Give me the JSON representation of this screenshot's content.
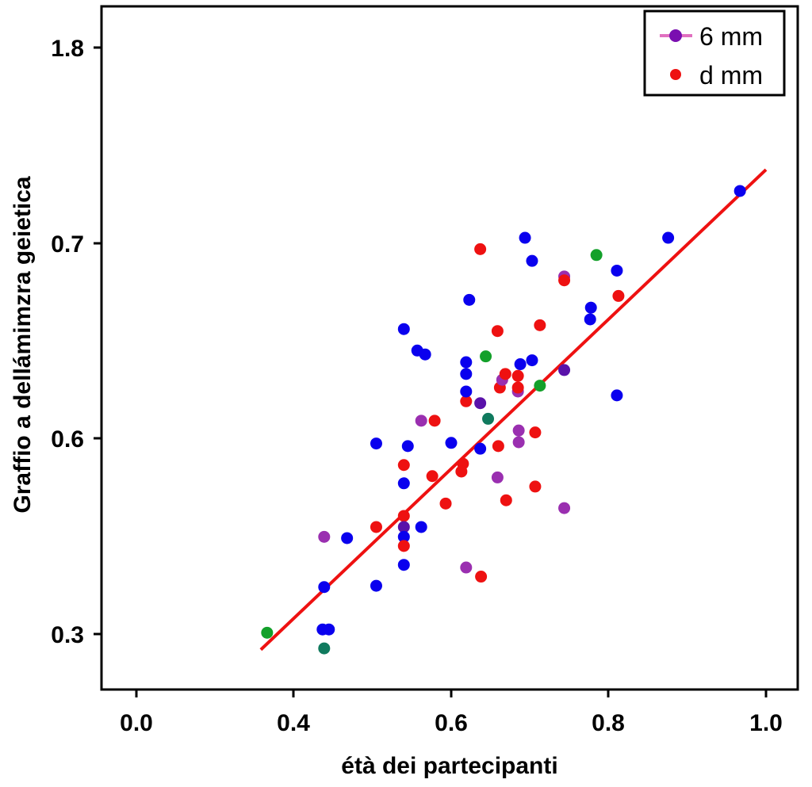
{
  "chart_data": {
    "type": "scatter",
    "title": "",
    "xlabel": "étà dei partecipanti",
    "ylabel": "Graffio a dellámimzra geietica",
    "x_ticks": [
      "0.0",
      "0.4",
      "0.6",
      "0.8",
      "1.0"
    ],
    "x_tick_values": [
      0.0,
      0.4,
      0.6,
      0.8,
      1.0
    ],
    "y_ticks": [
      "0.3",
      "0.6",
      "0.7",
      "1.8"
    ],
    "y_tick_values": [
      0.3,
      0.6,
      0.7,
      1.8
    ],
    "axis_scale_note": "tick labels are evenly spaced but unequal in value; scale is piecewise between ticks",
    "grid": false,
    "legend_position": "top-right",
    "legend": [
      {
        "label": "6 mm",
        "marker": "line-dot",
        "color": "#7a0fb0",
        "line_color": "#e070c0"
      },
      {
        "label": "d mm",
        "marker": "dot",
        "color": "#ee1111"
      }
    ],
    "colors": {
      "blue": "#0a00ee",
      "red": "#ee1111",
      "purple": "#9a2fb0",
      "violet": "#5a12aa",
      "green": "#13a02a",
      "teal": "#107a5e"
    },
    "points": [
      {
        "x": 0.333,
        "y": 0.302,
        "c": "green"
      },
      {
        "x": 0.439,
        "y": 0.278,
        "c": "teal"
      },
      {
        "x": 0.437,
        "y": 0.307,
        "c": "blue"
      },
      {
        "x": 0.445,
        "y": 0.307,
        "c": "blue"
      },
      {
        "x": 0.439,
        "y": 0.372,
        "c": "blue"
      },
      {
        "x": 0.439,
        "y": 0.449,
        "c": "purple"
      },
      {
        "x": 0.468,
        "y": 0.447,
        "c": "blue"
      },
      {
        "x": 0.505,
        "y": 0.592,
        "c": "blue"
      },
      {
        "x": 0.505,
        "y": 0.374,
        "c": "blue"
      },
      {
        "x": 0.505,
        "y": 0.464,
        "c": "red"
      },
      {
        "x": 0.54,
        "y": 0.559,
        "c": "red"
      },
      {
        "x": 0.54,
        "y": 0.531,
        "c": "blue"
      },
      {
        "x": 0.54,
        "y": 0.481,
        "c": "red"
      },
      {
        "x": 0.54,
        "y": 0.464,
        "c": "violet"
      },
      {
        "x": 0.54,
        "y": 0.449,
        "c": "blue"
      },
      {
        "x": 0.54,
        "y": 0.435,
        "c": "red"
      },
      {
        "x": 0.54,
        "y": 0.406,
        "c": "blue"
      },
      {
        "x": 0.562,
        "y": 0.464,
        "c": "blue"
      },
      {
        "x": 0.545,
        "y": 0.588,
        "c": "blue"
      },
      {
        "x": 0.576,
        "y": 0.542,
        "c": "red"
      },
      {
        "x": 0.593,
        "y": 0.5,
        "c": "red"
      },
      {
        "x": 0.6,
        "y": 0.593,
        "c": "blue"
      },
      {
        "x": 0.562,
        "y": 0.609,
        "c": "purple"
      },
      {
        "x": 0.579,
        "y": 0.609,
        "c": "red"
      },
      {
        "x": 0.54,
        "y": 0.656,
        "c": "blue"
      },
      {
        "x": 0.557,
        "y": 0.645,
        "c": "blue"
      },
      {
        "x": 0.567,
        "y": 0.643,
        "c": "blue"
      },
      {
        "x": 0.615,
        "y": 0.561,
        "c": "red"
      },
      {
        "x": 0.613,
        "y": 0.549,
        "c": "red"
      },
      {
        "x": 0.619,
        "y": 0.619,
        "c": "red"
      },
      {
        "x": 0.619,
        "y": 0.624,
        "c": "blue"
      },
      {
        "x": 0.619,
        "y": 0.633,
        "c": "blue"
      },
      {
        "x": 0.619,
        "y": 0.639,
        "c": "blue"
      },
      {
        "x": 0.623,
        "y": 0.671,
        "c": "blue"
      },
      {
        "x": 0.619,
        "y": 0.402,
        "c": "purple"
      },
      {
        "x": 0.638,
        "y": 0.388,
        "c": "red"
      },
      {
        "x": 0.637,
        "y": 0.697,
        "c": "red"
      },
      {
        "x": 0.637,
        "y": 0.618,
        "c": "violet"
      },
      {
        "x": 0.647,
        "y": 0.61,
        "c": "teal"
      },
      {
        "x": 0.644,
        "y": 0.642,
        "c": "green"
      },
      {
        "x": 0.637,
        "y": 0.584,
        "c": "blue"
      },
      {
        "x": 0.659,
        "y": 0.54,
        "c": "purple"
      },
      {
        "x": 0.66,
        "y": 0.588,
        "c": "red"
      },
      {
        "x": 0.67,
        "y": 0.505,
        "c": "red"
      },
      {
        "x": 0.659,
        "y": 0.655,
        "c": "red"
      },
      {
        "x": 0.662,
        "y": 0.626,
        "c": "red"
      },
      {
        "x": 0.665,
        "y": 0.63,
        "c": "purple"
      },
      {
        "x": 0.669,
        "y": 0.633,
        "c": "red"
      },
      {
        "x": 0.685,
        "y": 0.624,
        "c": "purple"
      },
      {
        "x": 0.685,
        "y": 0.626,
        "c": "red"
      },
      {
        "x": 0.685,
        "y": 0.632,
        "c": "red"
      },
      {
        "x": 0.686,
        "y": 0.604,
        "c": "purple"
      },
      {
        "x": 0.686,
        "y": 0.594,
        "c": "purple"
      },
      {
        "x": 0.688,
        "y": 0.638,
        "c": "blue"
      },
      {
        "x": 0.694,
        "y": 0.731,
        "c": "blue"
      },
      {
        "x": 0.703,
        "y": 0.691,
        "c": "blue"
      },
      {
        "x": 0.703,
        "y": 0.64,
        "c": "blue"
      },
      {
        "x": 0.713,
        "y": 0.627,
        "c": "green"
      },
      {
        "x": 0.713,
        "y": 0.658,
        "c": "red"
      },
      {
        "x": 0.707,
        "y": 0.603,
        "c": "red"
      },
      {
        "x": 0.707,
        "y": 0.526,
        "c": "red"
      },
      {
        "x": 0.744,
        "y": 0.683,
        "c": "purple"
      },
      {
        "x": 0.744,
        "y": 0.681,
        "c": "red"
      },
      {
        "x": 0.744,
        "y": 0.635,
        "c": "violet"
      },
      {
        "x": 0.744,
        "y": 0.493,
        "c": "purple"
      },
      {
        "x": 0.778,
        "y": 0.667,
        "c": "blue"
      },
      {
        "x": 0.777,
        "y": 0.661,
        "c": "blue"
      },
      {
        "x": 0.785,
        "y": 0.694,
        "c": "green"
      },
      {
        "x": 0.811,
        "y": 0.686,
        "c": "blue"
      },
      {
        "x": 0.813,
        "y": 0.673,
        "c": "red"
      },
      {
        "x": 0.811,
        "y": 0.622,
        "c": "blue"
      },
      {
        "x": 0.876,
        "y": 0.731,
        "c": "blue"
      },
      {
        "x": 0.967,
        "y": 0.994,
        "c": "blue"
      }
    ],
    "fit_line": {
      "color": "#ee1111",
      "x": [
        0.317,
        1.0
      ],
      "y": [
        0.276,
        1.114
      ]
    }
  }
}
